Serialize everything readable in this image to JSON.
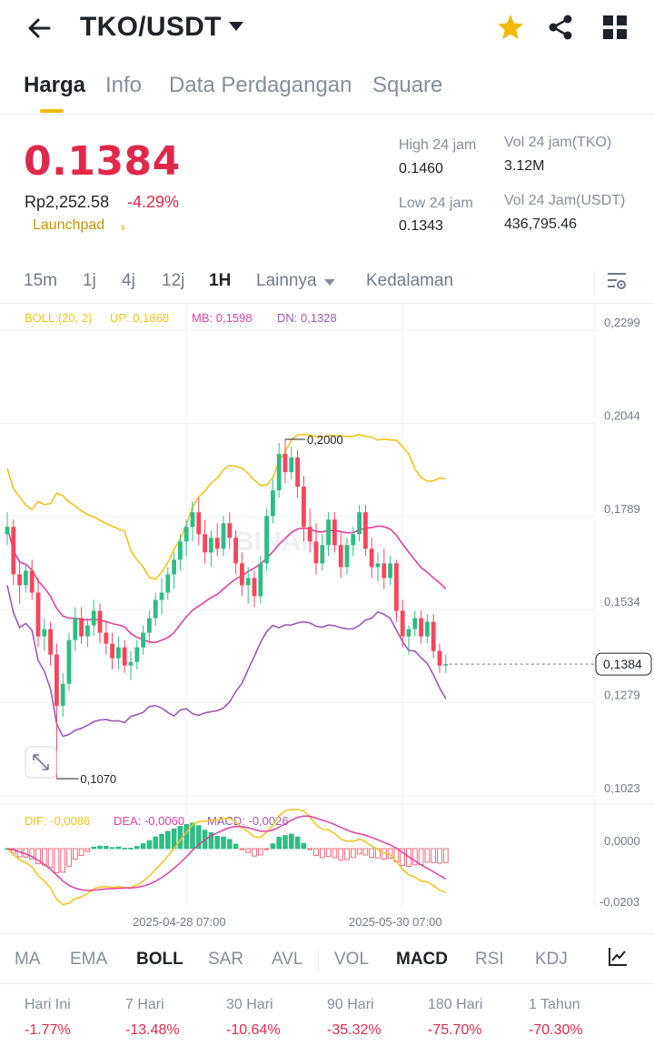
{
  "header": {
    "pair": "TKO/USDT",
    "icons": [
      "back-arrow-icon",
      "caret-down-icon",
      "star-icon",
      "share-icon",
      "grid-icon"
    ],
    "star_color": "#f0b90b"
  },
  "tabs": [
    {
      "label": "Harga",
      "active": true
    },
    {
      "label": "Info",
      "active": false
    },
    {
      "label": "Data Perdagangan",
      "active": false
    },
    {
      "label": "Square",
      "active": false
    }
  ],
  "ticker": {
    "price": "0.1384",
    "fiat": "Rp2,252.58",
    "change": "-4.29%",
    "tag": "Launchpad",
    "tag_arrow": "›",
    "stats": {
      "high_label": "High 24 jam",
      "high_value": "0.1460",
      "low_label": "Low 24 jam",
      "low_value": "0.1343",
      "vol_base_label": "Vol 24 jam(TKO)",
      "vol_base_value": "3.12M",
      "vol_quote_label": "Vol 24 Jam(USDT)",
      "vol_quote_value": "436,795.46"
    }
  },
  "intervals": [
    {
      "label": "15m",
      "active": false
    },
    {
      "label": "1j",
      "active": false
    },
    {
      "label": "4j",
      "active": false
    },
    {
      "label": "12j",
      "active": false
    },
    {
      "label": "1H",
      "active": true
    },
    {
      "label": "Lainnya",
      "active": false
    },
    {
      "label": "Kedalaman",
      "active": false
    }
  ],
  "chart_data": {
    "type": "candlestick",
    "boll": {
      "label": "BOLL:(20, 2)",
      "up": "UP: 0,1868",
      "mb": "MB: 0,1598",
      "dn": "DN: 0,1328"
    },
    "price_axis": [
      "0,2299",
      "0,2044",
      "0,1789",
      "0,1534",
      "0,1279",
      "0,1023"
    ],
    "ylim": [
      0.1023,
      0.2299
    ],
    "current_price_label": "0,1384",
    "current_price": 0.1384,
    "max_marker": {
      "label": "0,2000",
      "value": 0.2
    },
    "min_marker": {
      "label": "0,1070",
      "value": 0.107
    },
    "watermark": "BINANCE",
    "macd": {
      "dif": "DIF: -0,0086",
      "dea": "DEA: -0,0060",
      "macd": "MACD: -0,0026",
      "axis": [
        "0,0000",
        "-0,0203"
      ]
    },
    "x_labels": [
      "2025-04-28 07:00",
      "2025-05-30 07:00"
    ],
    "candles": [
      [
        0.174,
        0.18,
        0.171,
        0.176
      ],
      [
        0.176,
        0.178,
        0.16,
        0.163
      ],
      [
        0.163,
        0.167,
        0.155,
        0.16
      ],
      [
        0.16,
        0.166,
        0.158,
        0.164
      ],
      [
        0.164,
        0.167,
        0.156,
        0.158
      ],
      [
        0.158,
        0.162,
        0.143,
        0.146
      ],
      [
        0.146,
        0.151,
        0.142,
        0.148
      ],
      [
        0.148,
        0.15,
        0.138,
        0.141
      ],
      [
        0.141,
        0.144,
        0.107,
        0.127
      ],
      [
        0.127,
        0.136,
        0.124,
        0.133
      ],
      [
        0.133,
        0.147,
        0.131,
        0.145
      ],
      [
        0.145,
        0.154,
        0.142,
        0.151
      ],
      [
        0.151,
        0.154,
        0.144,
        0.146
      ],
      [
        0.146,
        0.151,
        0.143,
        0.149
      ],
      [
        0.149,
        0.156,
        0.146,
        0.153
      ],
      [
        0.153,
        0.155,
        0.144,
        0.147
      ],
      [
        0.147,
        0.15,
        0.141,
        0.144
      ],
      [
        0.144,
        0.147,
        0.137,
        0.14
      ],
      [
        0.14,
        0.146,
        0.137,
        0.143
      ],
      [
        0.143,
        0.145,
        0.136,
        0.138
      ],
      [
        0.138,
        0.142,
        0.134,
        0.139
      ],
      [
        0.139,
        0.145,
        0.137,
        0.143
      ],
      [
        0.143,
        0.149,
        0.141,
        0.147
      ],
      [
        0.147,
        0.153,
        0.144,
        0.151
      ],
      [
        0.151,
        0.158,
        0.149,
        0.156
      ],
      [
        0.156,
        0.162,
        0.152,
        0.158
      ],
      [
        0.158,
        0.165,
        0.156,
        0.163
      ],
      [
        0.163,
        0.169,
        0.159,
        0.167
      ],
      [
        0.167,
        0.174,
        0.164,
        0.172
      ],
      [
        0.172,
        0.178,
        0.168,
        0.176
      ],
      [
        0.176,
        0.183,
        0.172,
        0.18
      ],
      [
        0.18,
        0.184,
        0.171,
        0.174
      ],
      [
        0.174,
        0.178,
        0.166,
        0.169
      ],
      [
        0.169,
        0.175,
        0.165,
        0.173
      ],
      [
        0.173,
        0.177,
        0.168,
        0.17
      ],
      [
        0.17,
        0.179,
        0.168,
        0.177
      ],
      [
        0.177,
        0.18,
        0.17,
        0.173
      ],
      [
        0.173,
        0.175,
        0.163,
        0.166
      ],
      [
        0.166,
        0.169,
        0.157,
        0.16
      ],
      [
        0.16,
        0.165,
        0.155,
        0.162
      ],
      [
        0.162,
        0.164,
        0.154,
        0.157
      ],
      [
        0.157,
        0.168,
        0.155,
        0.166
      ],
      [
        0.166,
        0.181,
        0.164,
        0.179
      ],
      [
        0.179,
        0.189,
        0.177,
        0.186
      ],
      [
        0.186,
        0.199,
        0.184,
        0.196
      ],
      [
        0.196,
        0.2,
        0.188,
        0.191
      ],
      [
        0.191,
        0.198,
        0.189,
        0.195
      ],
      [
        0.195,
        0.197,
        0.184,
        0.187
      ],
      [
        0.187,
        0.19,
        0.172,
        0.176
      ],
      [
        0.176,
        0.181,
        0.169,
        0.172
      ],
      [
        0.172,
        0.177,
        0.163,
        0.166
      ],
      [
        0.166,
        0.174,
        0.164,
        0.171
      ],
      [
        0.171,
        0.18,
        0.168,
        0.178
      ],
      [
        0.178,
        0.18,
        0.169,
        0.171
      ],
      [
        0.171,
        0.175,
        0.162,
        0.165
      ],
      [
        0.165,
        0.173,
        0.163,
        0.171
      ],
      [
        0.171,
        0.176,
        0.168,
        0.174
      ],
      [
        0.174,
        0.182,
        0.172,
        0.18
      ],
      [
        0.18,
        0.182,
        0.168,
        0.17
      ],
      [
        0.17,
        0.173,
        0.162,
        0.165
      ],
      [
        0.165,
        0.169,
        0.161,
        0.166
      ],
      [
        0.166,
        0.17,
        0.159,
        0.162
      ],
      [
        0.162,
        0.168,
        0.16,
        0.166
      ],
      [
        0.166,
        0.167,
        0.15,
        0.153
      ],
      [
        0.153,
        0.156,
        0.143,
        0.146
      ],
      [
        0.146,
        0.149,
        0.141,
        0.148
      ],
      [
        0.148,
        0.153,
        0.146,
        0.151
      ],
      [
        0.151,
        0.153,
        0.144,
        0.146
      ],
      [
        0.146,
        0.152,
        0.144,
        0.15
      ],
      [
        0.15,
        0.152,
        0.14,
        0.142
      ],
      [
        0.142,
        0.144,
        0.136,
        0.138
      ],
      [
        0.138,
        0.141,
        0.136,
        0.1384
      ]
    ]
  },
  "indicators": {
    "items": [
      {
        "label": "MA",
        "active": false
      },
      {
        "label": "EMA",
        "active": false
      },
      {
        "label": "BOLL",
        "active": true
      },
      {
        "label": "SAR",
        "active": false
      },
      {
        "label": "AVL",
        "active": false
      },
      {
        "label": "VOL",
        "active": false
      },
      {
        "label": "MACD",
        "active": true
      },
      {
        "label": "RSI",
        "active": false
      },
      {
        "label": "KDJ",
        "active": false
      }
    ]
  },
  "performance": [
    {
      "label": "Hari Ini",
      "value": "-1.77%"
    },
    {
      "label": "7 Hari",
      "value": "-13.48%"
    },
    {
      "label": "30 Hari",
      "value": "-10.64%"
    },
    {
      "label": "90 Hari",
      "value": "-35.32%"
    },
    {
      "label": "180 Hari",
      "value": "-75.70%"
    },
    {
      "label": "1 Tahun",
      "value": "-70.30%"
    }
  ],
  "colors": {
    "up": "#2ebd85",
    "down": "#f6465d",
    "boll_up": "#f0c419",
    "boll_mb": "#e040a0",
    "boll_dn": "#9b59b6",
    "brand": "#f0b90b"
  }
}
